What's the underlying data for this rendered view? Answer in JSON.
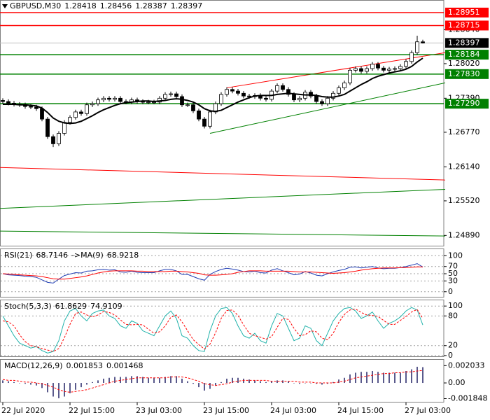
{
  "chart_data": [
    {
      "type": "candlestick",
      "title": "GBPUSD,M30",
      "categories": [
        "22 Jul 2020",
        null,
        null,
        null,
        null,
        null,
        null,
        null,
        null,
        null,
        null,
        null,
        "22 Jul 15:00",
        null,
        null,
        null,
        null,
        null,
        null,
        null,
        null,
        null,
        null,
        null,
        "23 Jul 03:00",
        null,
        null,
        null,
        null,
        null,
        null,
        null,
        null,
        null,
        null,
        null,
        "23 Jul 15:00",
        null,
        null,
        null,
        null,
        null,
        null,
        null,
        null,
        null,
        null,
        null,
        "24 Jul 03:00",
        null,
        null,
        null,
        null,
        null,
        null,
        null,
        null,
        null,
        null,
        null,
        "24 Jul 15:00",
        null,
        null,
        null,
        null,
        null,
        null,
        null,
        null,
        null,
        null,
        null,
        "27 Jul 03:00",
        null,
        null,
        null
      ],
      "open": [
        1.2735,
        1.2733,
        1.273,
        1.2728,
        1.2727,
        1.2724,
        1.2723,
        1.272,
        1.2701,
        1.2669,
        1.2656,
        1.2675,
        1.2695,
        1.2704,
        1.2714,
        1.2711,
        1.2727,
        1.2729,
        1.2736,
        1.2739,
        1.2737,
        1.2739,
        1.2733,
        1.2732,
        1.2736,
        1.2733,
        1.2732,
        1.2732,
        1.2732,
        1.2739,
        1.2746,
        1.2747,
        1.2742,
        1.2727,
        1.2727,
        1.2716,
        1.2701,
        1.2688,
        1.2714,
        1.2729,
        1.2746,
        1.2755,
        1.2752,
        1.2748,
        1.2743,
        1.2742,
        1.2744,
        1.2739,
        1.2737,
        1.2752,
        1.2762,
        1.2755,
        1.2746,
        1.2736,
        1.2739,
        1.275,
        1.2743,
        1.2733,
        1.2729,
        1.2739,
        1.2748,
        1.2758,
        1.2767,
        1.279,
        1.2793,
        1.2788,
        1.2793,
        1.2801,
        1.2794,
        1.279,
        1.2792,
        1.2793,
        1.2797,
        1.2806,
        1.2822,
        1.28418
      ],
      "high": [
        1.2739,
        1.2737,
        1.2734,
        1.2732,
        1.2731,
        1.2728,
        1.2727,
        1.2724,
        1.2705,
        1.2673,
        1.2679,
        1.2699,
        1.2708,
        1.2718,
        1.2718,
        1.2731,
        1.2733,
        1.274,
        1.2743,
        1.2743,
        1.2743,
        1.2743,
        1.2737,
        1.274,
        1.274,
        1.2737,
        1.2736,
        1.2736,
        1.2743,
        1.275,
        1.2751,
        1.2751,
        1.2746,
        1.2731,
        1.2731,
        1.272,
        1.2705,
        1.2718,
        1.2733,
        1.275,
        1.2759,
        1.2759,
        1.2756,
        1.2752,
        1.2747,
        1.2748,
        1.2748,
        1.2743,
        1.2756,
        1.2766,
        1.2766,
        1.2759,
        1.275,
        1.2743,
        1.2754,
        1.2754,
        1.2747,
        1.2737,
        1.2743,
        1.2752,
        1.2762,
        1.2771,
        1.2794,
        1.2797,
        1.2797,
        1.2797,
        1.2805,
        1.2805,
        1.2798,
        1.2796,
        1.2797,
        1.2801,
        1.281,
        1.2826,
        1.2853,
        1.28456
      ],
      "low": [
        1.2729,
        1.2726,
        1.2724,
        1.2723,
        1.272,
        1.2719,
        1.2716,
        1.2697,
        1.2665,
        1.265,
        1.2652,
        1.2671,
        1.2691,
        1.27,
        1.2707,
        1.2707,
        1.2723,
        1.2725,
        1.2732,
        1.2733,
        1.2733,
        1.2729,
        1.2728,
        1.2728,
        1.2729,
        1.2728,
        1.2728,
        1.2728,
        1.2728,
        1.2735,
        1.2742,
        1.2738,
        1.2723,
        1.2723,
        1.2712,
        1.2697,
        1.2684,
        1.2684,
        1.271,
        1.2725,
        1.2742,
        1.2748,
        1.2744,
        1.2739,
        1.2738,
        1.2738,
        1.2735,
        1.2733,
        1.2733,
        1.2748,
        1.2751,
        1.2742,
        1.2732,
        1.2732,
        1.2735,
        1.2739,
        1.2729,
        1.2725,
        1.2725,
        1.2735,
        1.2744,
        1.2754,
        1.2763,
        1.2786,
        1.2784,
        1.2784,
        1.2789,
        1.279,
        1.2786,
        1.2786,
        1.2788,
        1.2789,
        1.2793,
        1.2802,
        1.2818,
        1.28387
      ],
      "close": [
        1.2733,
        1.273,
        1.2728,
        1.2727,
        1.2724,
        1.2723,
        1.272,
        1.2701,
        1.2669,
        1.2656,
        1.2675,
        1.2695,
        1.2704,
        1.2714,
        1.2711,
        1.2727,
        1.2729,
        1.2736,
        1.2739,
        1.2737,
        1.2739,
        1.2733,
        1.2732,
        1.2736,
        1.2733,
        1.2732,
        1.2732,
        1.2732,
        1.2739,
        1.2746,
        1.2747,
        1.2742,
        1.2727,
        1.2727,
        1.2716,
        1.2701,
        1.2688,
        1.2714,
        1.2729,
        1.2746,
        1.2755,
        1.2752,
        1.2748,
        1.2743,
        1.2742,
        1.2744,
        1.2739,
        1.2737,
        1.2752,
        1.2762,
        1.2755,
        1.2746,
        1.2736,
        1.2739,
        1.275,
        1.2743,
        1.2733,
        1.2729,
        1.2739,
        1.2748,
        1.2758,
        1.2767,
        1.279,
        1.2793,
        1.2788,
        1.2793,
        1.2801,
        1.2794,
        1.279,
        1.2792,
        1.2793,
        1.2797,
        1.2806,
        1.2822,
        1.28418,
        1.28397
      ],
      "candle_colors": {
        "up": "#ffffff",
        "down": "#000000",
        "outline": "#000000"
      },
      "ma": {
        "color": "#000000",
        "values": [
          1.2728,
          1.2728,
          1.2728,
          1.2727,
          1.2727,
          1.2726,
          1.2725,
          1.2721,
          1.2713,
          1.2703,
          1.2697,
          1.2694,
          1.2693,
          1.2694,
          1.2697,
          1.2702,
          1.2707,
          1.2713,
          1.2718,
          1.2722,
          1.2726,
          1.2729,
          1.2731,
          1.2732,
          1.2733,
          1.2734,
          1.2734,
          1.2733,
          1.2734,
          1.2735,
          1.2737,
          1.2738,
          1.2737,
          1.2735,
          1.2732,
          1.2727,
          1.272,
          1.2716,
          1.2715,
          1.2717,
          1.2722,
          1.2727,
          1.2732,
          1.2736,
          1.274,
          1.2743,
          1.2744,
          1.2744,
          1.2744,
          1.2746,
          1.2747,
          1.2748,
          1.2747,
          1.2746,
          1.2745,
          1.2745,
          1.2744,
          1.2742,
          1.2741,
          1.2741,
          1.2743,
          1.2746,
          1.2752,
          1.2758,
          1.2764,
          1.2769,
          1.2775,
          1.2779,
          1.2782,
          1.2785,
          1.2787,
          1.2789,
          1.2792,
          1.2797,
          1.2805,
          1.2812
        ]
      },
      "levels": [
        {
          "value": 1.28951,
          "color": "#ff0000"
        },
        {
          "value": 1.28715,
          "color": "#ff0000"
        },
        {
          "value": 1.28184,
          "color": "#008000"
        },
        {
          "value": 1.2783,
          "label": "1.27830",
          "color": "#008000"
        },
        {
          "value": 1.2729,
          "label": "1.27290",
          "color": "#008000"
        }
      ],
      "trendlines": [
        {
          "color": "#ff0000",
          "points": [
            [
              40,
              1.2758
            ],
            [
              79,
              1.2822
            ]
          ]
        },
        {
          "color": "#008000",
          "points": [
            [
              37,
              1.2675
            ],
            [
              79,
              1.2767
            ]
          ]
        },
        {
          "color": "#ff0000",
          "points": [
            [
              -1,
              1.2613
            ],
            [
              79,
              1.259
            ]
          ]
        },
        {
          "color": "#008000",
          "points": [
            [
              -1,
              1.2538
            ],
            [
              79,
              1.2573
            ]
          ]
        },
        {
          "color": "#008000",
          "points": [
            [
              -1,
              1.2497
            ],
            [
              79,
              1.2488
            ]
          ]
        }
      ],
      "current_price_color": "#000000",
      "ylim": [
        1.2469,
        1.2918
      ],
      "yticks": [
        {
          "value": 1.2864,
          "label": "1.28640"
        },
        {
          "value": 1.2802,
          "label": "1.28020"
        },
        {
          "value": 1.2739,
          "label": "1.27390"
        },
        {
          "value": 1.2677,
          "label": "1.26770"
        },
        {
          "value": 1.2614,
          "label": "1.26140"
        },
        {
          "value": 1.2552,
          "label": "1.25520"
        },
        {
          "value": 1.2489,
          "label": "1.24890"
        }
      ],
      "grid": false
    },
    {
      "type": "line",
      "series": [
        {
          "name": "RSI(21)",
          "color": "#1e3cb4",
          "values": [
            50,
            47,
            46,
            45,
            43,
            42,
            40,
            33,
            26,
            24,
            35,
            45,
            49,
            53,
            52,
            57,
            58,
            61,
            62,
            60,
            61,
            55,
            54,
            57,
            54,
            53,
            53,
            53,
            58,
            62,
            62,
            58,
            48,
            48,
            42,
            36,
            32,
            48,
            56,
            62,
            65,
            63,
            60,
            56,
            55,
            57,
            53,
            52,
            60,
            64,
            58,
            53,
            47,
            49,
            56,
            52,
            46,
            44,
            50,
            55,
            59,
            62,
            68,
            69,
            66,
            68,
            70,
            66,
            64,
            65,
            65,
            67,
            70,
            74,
            78,
            68.7146
          ]
        },
        {
          "name": "->MA(9)",
          "color": "#ff0000",
          "values": [
            50,
            49,
            48,
            47,
            46,
            45,
            44,
            42,
            39,
            36,
            35,
            35,
            37,
            39,
            41,
            44,
            48,
            52,
            55,
            57,
            58,
            58,
            58,
            58,
            57,
            57,
            56,
            56,
            56,
            56,
            57,
            57,
            56,
            55,
            53,
            51,
            47,
            46,
            46,
            47,
            48,
            50,
            54,
            56,
            58,
            58,
            58,
            57,
            57,
            57,
            57,
            57,
            56,
            55,
            55,
            55,
            54,
            53,
            52,
            51,
            52,
            53,
            55,
            57,
            60,
            62,
            64,
            65,
            66,
            66,
            66,
            67,
            67,
            68,
            69,
            68.9218
          ]
        }
      ],
      "ylim": [
        -16,
        120
      ],
      "yticks": [
        0,
        30,
        50,
        70,
        100
      ],
      "grid": true
    },
    {
      "type": "line",
      "series": [
        {
          "name": "Stoch(5,3,3)",
          "color": "#20b2aa",
          "values": [
            80,
            60,
            40,
            25,
            20,
            15,
            18,
            10,
            5,
            8,
            30,
            70,
            90,
            95,
            80,
            70,
            85,
            90,
            92,
            80,
            75,
            60,
            55,
            70,
            65,
            50,
            45,
            40,
            60,
            80,
            90,
            75,
            40,
            35,
            20,
            10,
            8,
            50,
            80,
            95,
            97,
            85,
            60,
            40,
            35,
            45,
            30,
            25,
            60,
            85,
            80,
            55,
            30,
            35,
            60,
            55,
            30,
            20,
            45,
            70,
            85,
            95,
            97,
            90,
            75,
            80,
            88,
            70,
            55,
            65,
            70,
            78,
            90,
            97,
            92,
            61.8629
          ]
        },
        {
          "color": "#ff0000",
          "style": "dashed",
          "values": [
            70,
            68,
            60,
            42,
            28,
            20,
            18,
            14,
            11,
            8,
            14,
            36,
            63,
            85,
            88,
            82,
            78,
            82,
            89,
            87,
            82,
            72,
            63,
            62,
            63,
            62,
            53,
            45,
            48,
            60,
            77,
            82,
            68,
            50,
            32,
            22,
            13,
            23,
            46,
            75,
            91,
            92,
            81,
            62,
            45,
            40,
            37,
            33,
            38,
            57,
            75,
            73,
            55,
            40,
            42,
            50,
            48,
            35,
            32,
            45,
            67,
            83,
            92,
            94,
            87,
            82,
            81,
            79,
            71,
            63,
            63,
            71,
            79,
            88,
            93,
            74.9109
          ]
        }
      ],
      "ylim": [
        -3,
        113
      ],
      "yticks": [
        0,
        20,
        80,
        100
      ],
      "grid": true
    },
    {
      "type": "bar",
      "series": [
        {
          "name": "MACD(12,26,9)",
          "type": "bar",
          "color": "#5a5a8c",
          "values": [
            0.0003,
            0.0002,
            0.0001,
            0,
            -0.0001,
            -0.0002,
            -0.0003,
            -0.0006,
            -0.0011,
            -0.0016,
            -0.0018,
            -0.0016,
            -0.0012,
            -0.0008,
            -0.0005,
            -0.0002,
            0.0001,
            0.0003,
            0.0005,
            0.0006,
            0.0007,
            0.0007,
            0.0007,
            0.0008,
            0.0008,
            0.0007,
            0.0006,
            0.0006,
            0.0006,
            0.0007,
            0.0008,
            0.0008,
            0.0005,
            0.0002,
            -0.0001,
            -0.0005,
            -0.0009,
            -0.0007,
            -0.0003,
            0.0001,
            0.0005,
            0.0006,
            0.0006,
            0.0005,
            0.0004,
            0.0003,
            0.0002,
            0.0001,
            0.0002,
            0.0003,
            0.0003,
            0.0002,
            0,
            -0.0001,
            0,
            0,
            -0.0001,
            -0.0002,
            -0.0001,
            0.0001,
            0.0004,
            0.0006,
            0.001,
            0.0012,
            0.0013,
            0.0013,
            0.0014,
            0.0013,
            0.0012,
            0.0012,
            0.0012,
            0.0012,
            0.0014,
            0.0016,
            0.0019,
            0.001853
          ]
        },
        {
          "type": "line",
          "style": "dashed",
          "color": "#ff0000",
          "values": [
            0.0004,
            0.0003,
            0.0003,
            0.0002,
            0.0001,
            0.0001,
            0,
            -0.0001,
            -0.0003,
            -0.0005,
            -0.0008,
            -0.001,
            -0.0011,
            -0.001,
            -0.0009,
            -0.0008,
            -0.0006,
            -0.0004,
            -0.0002,
            0,
            0.0002,
            0.0003,
            0.0004,
            0.0005,
            0.0006,
            0.0006,
            0.0006,
            0.0006,
            0.0006,
            0.0006,
            0.0007,
            0.0007,
            0.0007,
            0.0006,
            0.0004,
            0.0002,
            -0.0001,
            -0.0002,
            -0.0003,
            -0.0002,
            -0.0001,
            0.0001,
            0.0002,
            0.0003,
            0.0003,
            0.0003,
            0.0003,
            0.0003,
            0.0002,
            0.0002,
            0.0002,
            0.0002,
            0.0002,
            0.0001,
            0.0001,
            0.0001,
            0,
            0,
            0,
            0,
            0.0001,
            0.0002,
            0.0004,
            0.0006,
            0.0007,
            0.0008,
            0.0009,
            0.001,
            0.0011,
            0.0011,
            0.0012,
            0.0012,
            0.0013,
            0.0013,
            0.0014,
            0.001468
          ]
        }
      ],
      "ylim": [
        -0.0023,
        0.0028
      ],
      "yticks": [
        0.002033,
        {
          "value": 0,
          "label": "0.00"
        },
        -0.001848
      ],
      "grid": false
    }
  ]
}
